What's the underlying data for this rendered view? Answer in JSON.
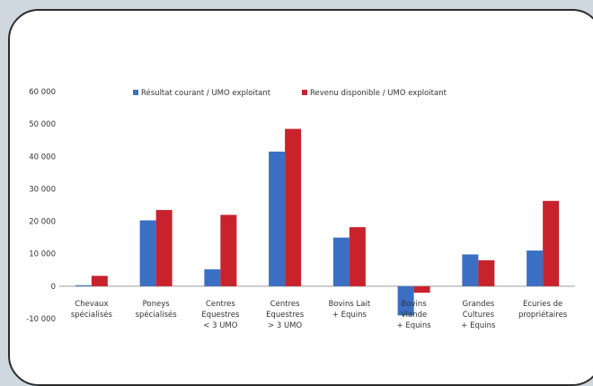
{
  "chart_data": {
    "type": "bar",
    "categories": [
      [
        "Chevaux",
        "spécialisés"
      ],
      [
        "Poneys",
        "spécialisés"
      ],
      [
        "Centres",
        "Equestres",
        "< 3 UMO"
      ],
      [
        "Centres",
        "Equestres",
        "> 3 UMO"
      ],
      [
        "Bovins Lait",
        "+ Equins"
      ],
      [
        "Bovins",
        "Viande",
        "+ Equins"
      ],
      [
        "Grandes",
        "Cultures",
        "+ Equins"
      ],
      [
        "Ecuries de",
        "propriétaires"
      ]
    ],
    "series": [
      {
        "name": "Résultat courant / UMO exploitant",
        "color": "#3b6fc4",
        "values": [
          300,
          20300,
          5200,
          41500,
          15000,
          -9000,
          9800,
          11000
        ]
      },
      {
        "name": "Revenu disponible / UMO exploitant",
        "color": "#c8232c",
        "values": [
          3200,
          23500,
          22000,
          48500,
          18200,
          -2000,
          8000,
          26300
        ]
      }
    ],
    "yticks": [
      "60 000",
      "50 000",
      "40 000",
      "30 000",
      "20 000",
      "10 000",
      "0",
      "-10 000"
    ],
    "ylim": [
      -10000,
      60000
    ],
    "legend_position": "top"
  }
}
